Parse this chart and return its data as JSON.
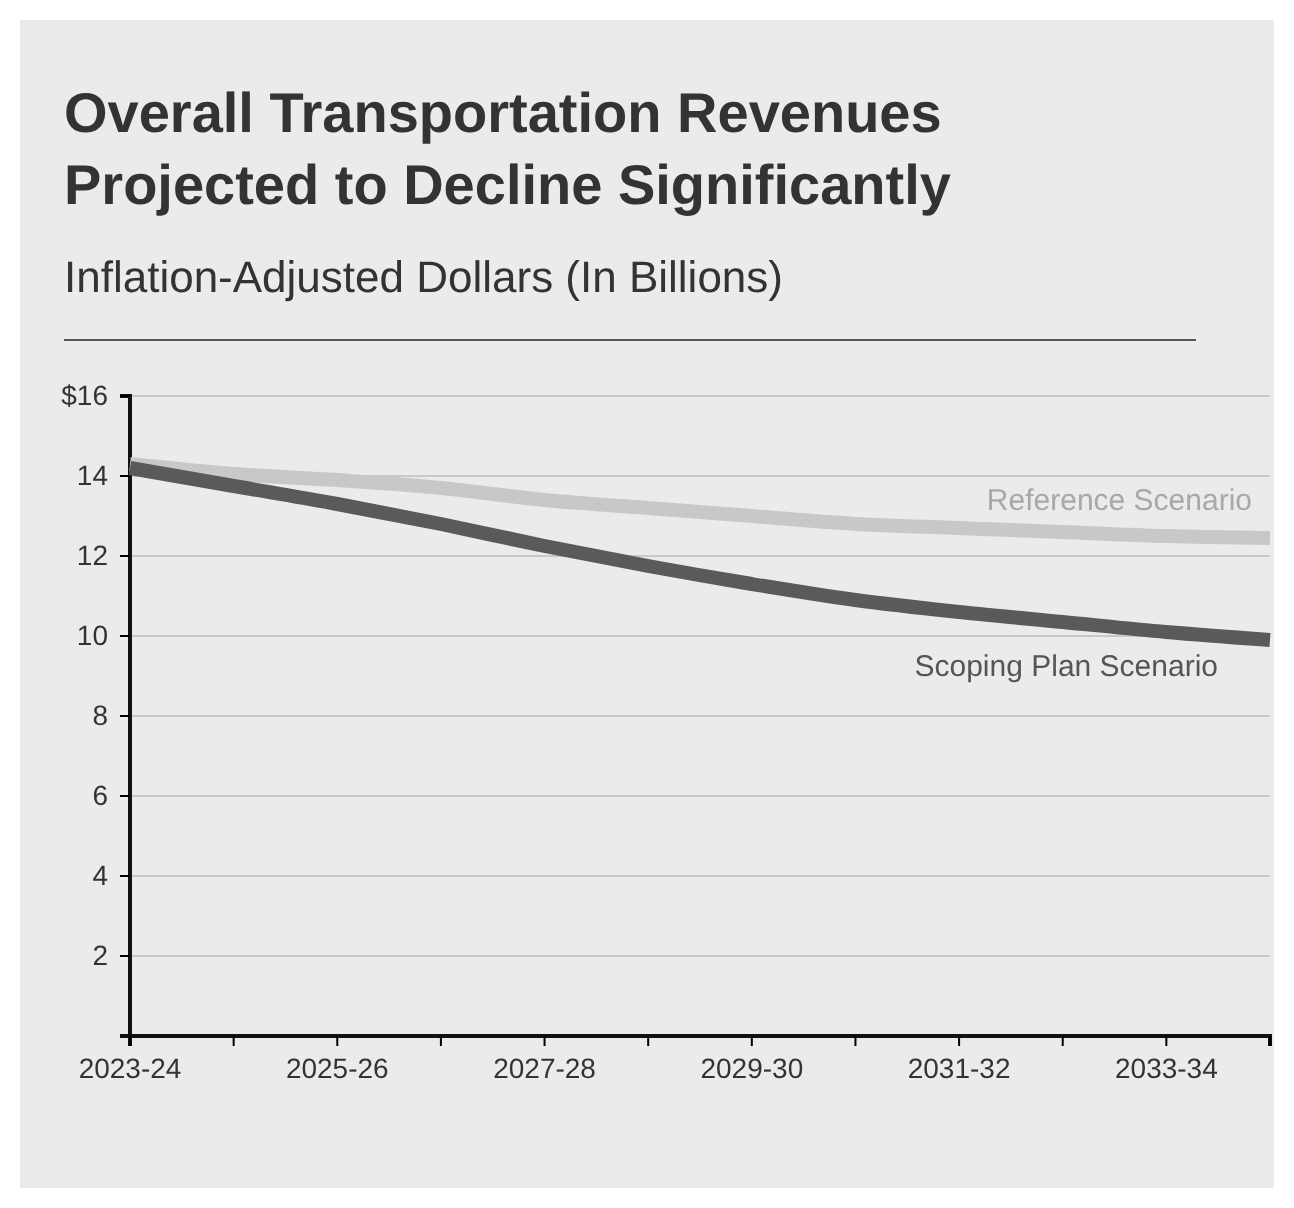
{
  "chart_data": {
    "type": "line",
    "title": "Overall Transportation Revenues Projected to Decline Significantly",
    "subtitle": "Inflation-Adjusted Dollars (In Billions)",
    "categories": [
      "2023-24",
      null,
      "2025-26",
      null,
      "2027-28",
      null,
      "2029-30",
      null,
      "2031-32",
      null,
      "2033-34",
      null
    ],
    "series": [
      {
        "name": "Reference Scenario",
        "color": "#c8c8c8",
        "values": [
          14.3,
          14.05,
          13.9,
          13.7,
          13.4,
          13.2,
          13.0,
          12.8,
          12.7,
          12.6,
          12.5,
          12.45
        ]
      },
      {
        "name": "Scoping Plan Scenario",
        "color": "#5a5a5a",
        "values": [
          14.2,
          13.75,
          13.3,
          12.8,
          12.25,
          11.75,
          11.3,
          10.9,
          10.6,
          10.35,
          10.1,
          9.9
        ]
      }
    ],
    "ylim": [
      0,
      16
    ],
    "yticks": [
      2,
      4,
      6,
      8,
      10,
      12,
      14,
      {
        "value": 16,
        "label": "$16"
      }
    ],
    "grid": "y"
  }
}
